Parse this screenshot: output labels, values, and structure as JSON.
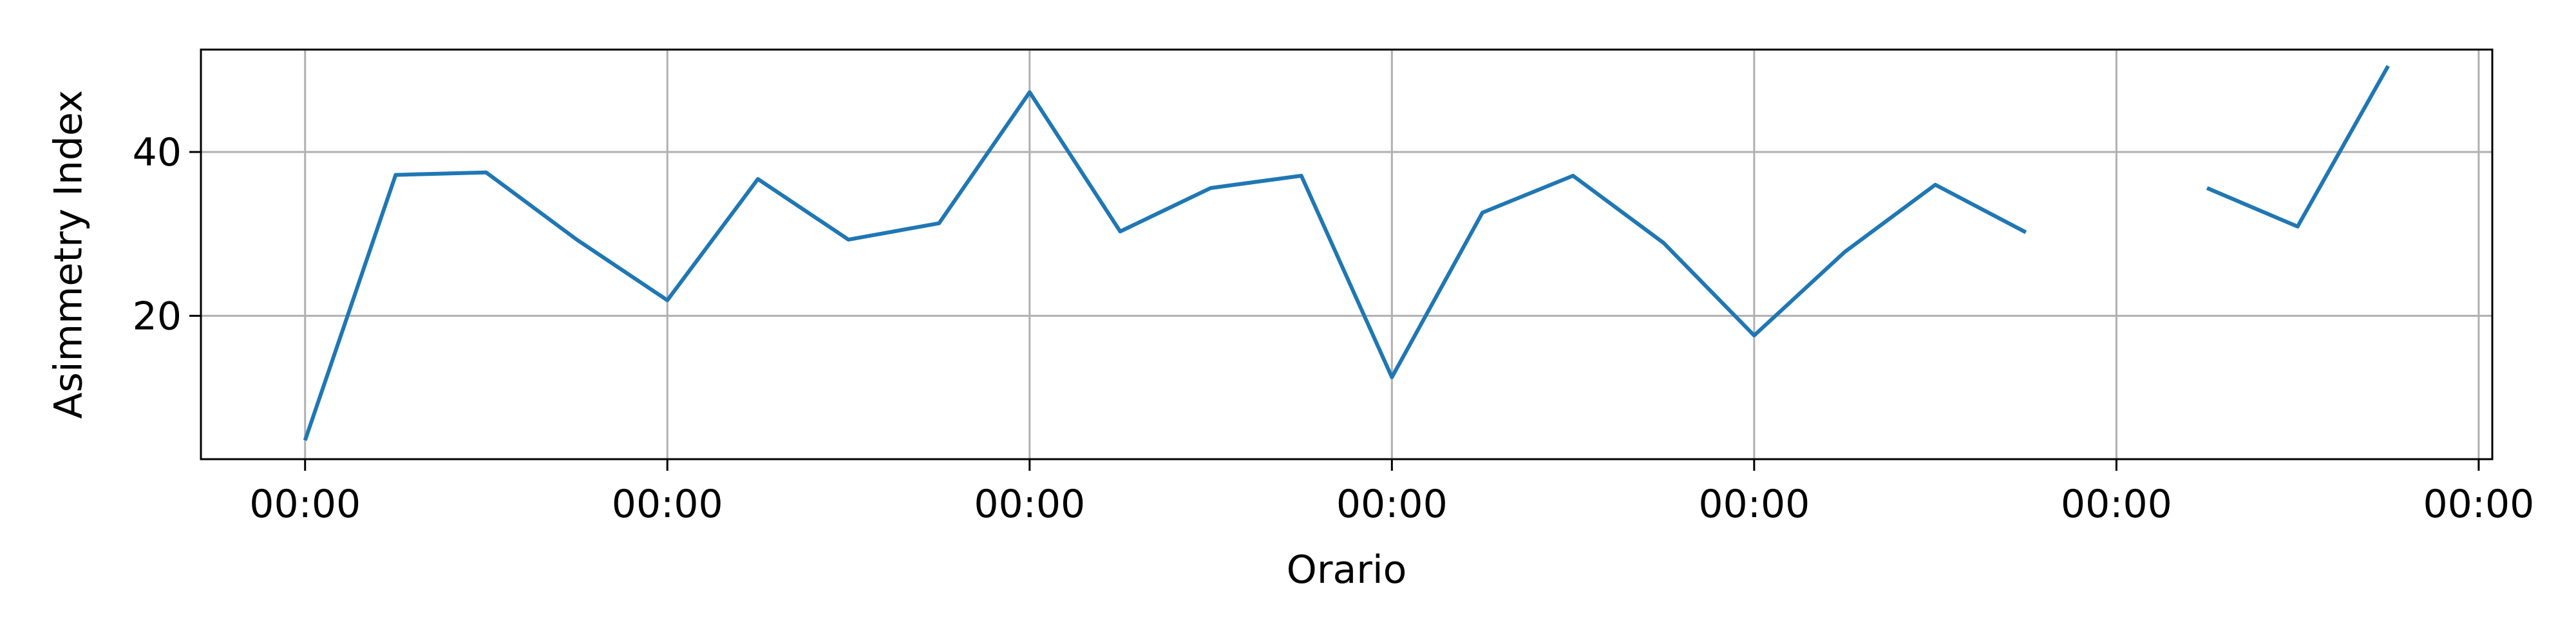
{
  "chart_data": {
    "type": "line",
    "title": "",
    "xlabel": "Orario",
    "ylabel": "Asimmetry Index",
    "x_tick_labels": [
      "00:00",
      "00:00",
      "00:00",
      "00:00",
      "00:00",
      "00:00",
      "00:00"
    ],
    "y_ticks": [
      20,
      40
    ],
    "xlim": [
      -1.15,
      24.15
    ],
    "ylim": [
      2.5,
      52.5
    ],
    "grid": true,
    "legend": "none",
    "series": [
      {
        "color": "#1f77b4",
        "x": [
          0,
          1,
          2,
          3,
          4,
          5,
          6,
          7,
          8,
          9,
          10,
          11,
          12,
          13,
          14,
          15,
          16,
          17,
          18,
          19,
          20,
          21,
          22,
          23
        ],
        "values": [
          4.8,
          37.2,
          37.5,
          29.3,
          21.9,
          36.7,
          29.3,
          31.3,
          47.3,
          30.3,
          35.6,
          37.1,
          12.5,
          32.6,
          37.1,
          28.9,
          17.6,
          27.8,
          36.0,
          30.2,
          null,
          35.6,
          30.9,
          50.5
        ]
      }
    ]
  }
}
